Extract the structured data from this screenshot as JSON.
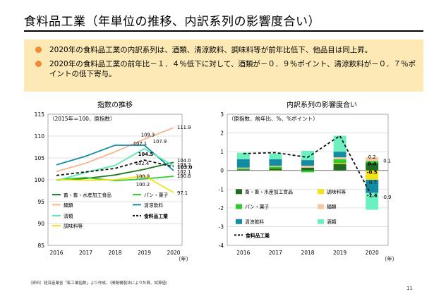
{
  "page": {
    "title": "食料品工業（年単位の推移、内訳系列の影響度合い）",
    "bullets": [
      "2020年の食料品工業の内訳系列は、酒類、清涼飲料、調味料等が前年比低下、他品目は同上昇。",
      "2020年の食料品工業の前年比－１．４％低下に対して、酒類が－０．９％ポイント、清涼飲料が－０．７％ポイントの低下寄与。"
    ],
    "footnote": "（資料）経済産業省「鉱工業指数」より作成。（開閉機製法により計算、試算値）",
    "page_number": "11"
  },
  "chart_data": [
    {
      "type": "line",
      "title": "指数の推移",
      "subtitle": "（2015年＝100、原指数）",
      "xlabel": "（年）",
      "categories": [
        "2016",
        "2017",
        "2018",
        "2019",
        "2020"
      ],
      "ylim": [
        85,
        115
      ],
      "yticks": [
        85,
        90,
        95,
        100,
        105,
        110,
        115
      ],
      "grid": true,
      "series": [
        {
          "name": "畜・畜・水産加工食品",
          "color": "#1f7a1f",
          "dash": false,
          "values": [
            99.9,
            100.3,
            101.1,
            102.4,
            104.0
          ]
        },
        {
          "name": "パン・菓子",
          "color": "#2ecc2e",
          "dash": false,
          "values": [
            100.0,
            100.5,
            99.8,
            100.2,
            100.8
          ]
        },
        {
          "name": "麺類",
          "color": "#f7b58a",
          "dash": false,
          "values": [
            101.9,
            103.8,
            106.4,
            109.3,
            111.9
          ]
        },
        {
          "name": "清涼飲料",
          "color": "#138ba3",
          "dash": false,
          "values": [
            103.4,
            105.4,
            107.9,
            107.9,
            102.1
          ]
        },
        {
          "name": "清類",
          "color": "#5ce8b0",
          "dash": false,
          "values": [
            99.8,
            101.7,
            103.3,
            107.1,
            103.2
          ]
        },
        {
          "name": "食料品工業",
          "color": "#111111",
          "dash": true,
          "values": [
            101.0,
            101.8,
            102.6,
            104.5,
            103.0
          ]
        },
        {
          "name": "調味料等",
          "color": "#f5e216",
          "dash": false,
          "values": [
            100.0,
            99.9,
            100.0,
            100.9,
            97.1
          ]
        }
      ],
      "labels_2019": [
        "109.3",
        "107.9",
        "107.1",
        "104.5",
        "102.4",
        "100.9",
        "100.2"
      ],
      "labels_2020": [
        "111.9",
        "104.0",
        "103.2",
        "103.0",
        "102.1",
        "100.8",
        "97.1"
      ]
    },
    {
      "type": "bar",
      "title": "内訳系列の影響度合い",
      "subtitle": "（原指数、前年比、%、%ポイント）",
      "xlabel": "（年）",
      "categories": [
        "2016",
        "2017",
        "2018",
        "2019",
        "2020"
      ],
      "ylim": [
        -4,
        3
      ],
      "yticks": [
        -4,
        -3,
        -2,
        -1,
        0,
        1,
        2,
        3
      ],
      "stacked": true,
      "series": [
        {
          "name": "畜・畜・水産加工食品",
          "color": "#1f6b1f",
          "values": [
            0.05,
            0.1,
            0.15,
            0.35,
            0.4
          ]
        },
        {
          "name": "調味料等",
          "color": "#f5e216",
          "values": [
            0.0,
            -0.02,
            0.0,
            0.05,
            -0.5
          ]
        },
        {
          "name": "パン・菓子",
          "color": "#2ecc2e",
          "values": [
            0.05,
            0.1,
            -0.1,
            0.2,
            0.1
          ]
        },
        {
          "name": "麺類",
          "color": "#f7c9a0",
          "values": [
            0.05,
            0.05,
            0.1,
            0.1,
            0.2
          ]
        },
        {
          "name": "清涼飲料",
          "color": "#138ba3",
          "values": [
            0.45,
            0.35,
            0.3,
            0.3,
            -0.7
          ]
        },
        {
          "name": "酒類",
          "color": "#6cf0c0",
          "values": [
            0.35,
            0.3,
            0.5,
            0.85,
            -0.9
          ]
        }
      ],
      "line_series": {
        "name": "食料品工業",
        "color": "#111111",
        "values": [
          0.9,
          0.95,
          0.7,
          1.85,
          -1.4
        ]
      },
      "labels_2020": [
        "0.2",
        "0.4",
        "0.1",
        "-0.5",
        "-0.7",
        "-1.4",
        "-0.9"
      ]
    }
  ]
}
